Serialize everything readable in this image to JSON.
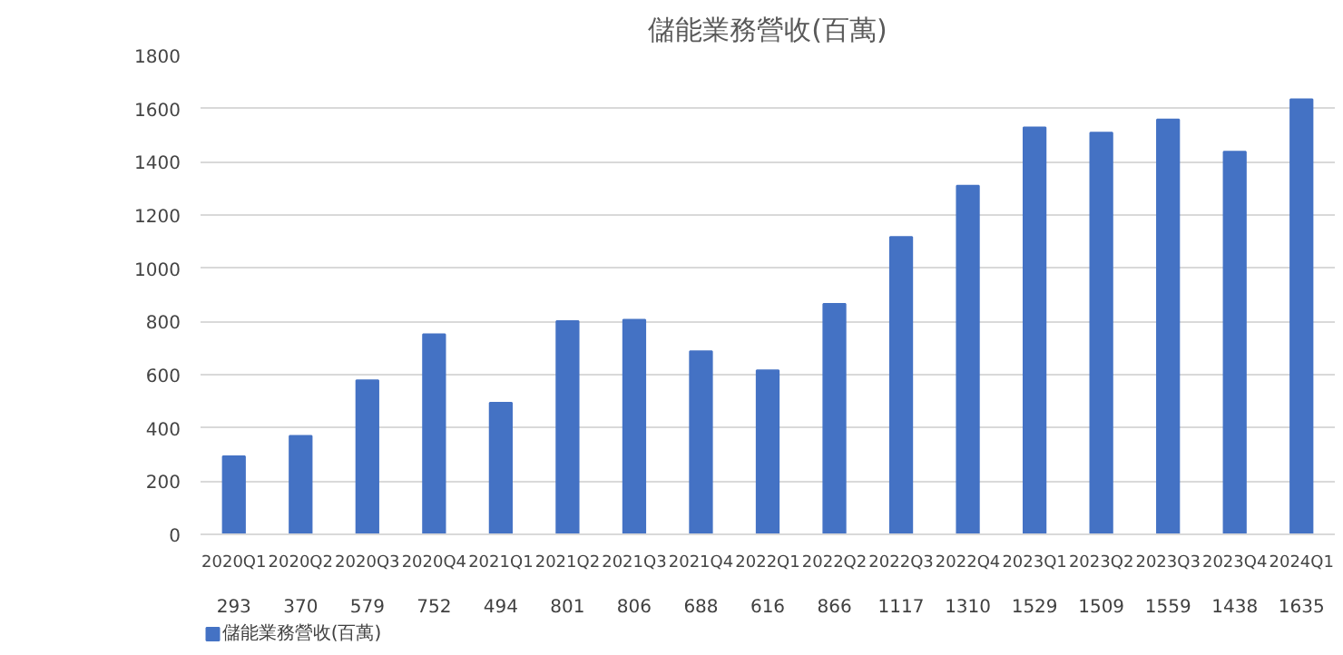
{
  "chart_data": {
    "type": "bar",
    "title": "儲能業務營收(百萬)",
    "categories": [
      "2020Q1",
      "2020Q2",
      "2020Q3",
      "2020Q4",
      "2021Q1",
      "2021Q2",
      "2021Q3",
      "2021Q4",
      "2022Q1",
      "2022Q2",
      "2022Q3",
      "2022Q4",
      "2023Q1",
      "2023Q2",
      "2023Q3",
      "2023Q4",
      "2024Q1"
    ],
    "series": [
      {
        "name": "儲能業務營收(百萬)",
        "color": "#4472c4",
        "values": [
          293,
          370,
          579,
          752,
          494,
          801,
          806,
          688,
          616,
          866,
          1117,
          1310,
          1529,
          1509,
          1559,
          1438,
          1635
        ]
      }
    ],
    "ylim": [
      0,
      1800
    ],
    "yticks": [
      0,
      200,
      400,
      600,
      800,
      1000,
      1200,
      1400,
      1600,
      1800
    ],
    "grid": "y",
    "legend": "bottom",
    "data_labels": true
  }
}
